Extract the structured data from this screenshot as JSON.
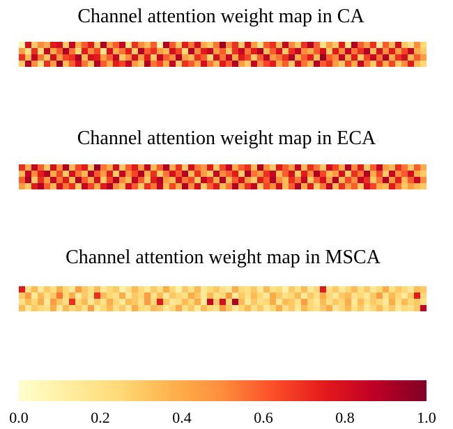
{
  "chart_data": {
    "type": "heatmap",
    "colormap": "YlOrRd",
    "colormap_colors": [
      "#ffffcc",
      "#ffeda0",
      "#fed976",
      "#feb24c",
      "#fd8d3c",
      "#fc4e2a",
      "#e31a1c",
      "#bd0026",
      "#800026"
    ],
    "range": [
      0.0,
      1.0
    ],
    "maps": [
      {
        "title": "Channel attention weight map in CA",
        "rows": 4,
        "cols": 65,
        "values": [
          [
            0.1,
            0.8,
            0.3,
            0.5,
            0.4,
            0.75,
            0.8,
            0.3,
            0.85,
            0.4,
            0.6,
            0.75,
            0.3,
            0.9,
            0.45,
            0.6,
            0.85,
            0.2,
            0.7,
            0.5,
            0.35,
            0.6,
            0.1,
            0.9,
            0.6,
            0.3,
            0.75,
            0.55,
            0.8,
            0.4,
            0.3,
            0.55,
            0.95,
            0.5,
            0.7,
            0.3,
            0.8,
            0.45,
            0.2,
            0.6,
            0.7,
            0.35,
            0.85,
            0.5,
            0.3,
            0.7,
            0.9,
            0.6,
            0.2,
            0.45,
            0.3,
            0.75,
            0.2,
            0.9,
            0.6,
            0.45,
            0.7,
            0.15,
            0.6,
            0.35,
            0.8,
            0.3,
            0.2,
            0.5,
            0.25
          ],
          [
            0.45,
            0.2,
            0.7,
            0.25,
            0.85,
            0.4,
            0.6,
            0.9,
            0.55,
            0.25,
            0.75,
            0.5,
            0.65,
            0.2,
            0.8,
            0.4,
            0.55,
            0.75,
            0.3,
            0.9,
            0.6,
            0.7,
            0.45,
            0.35,
            0.8,
            0.65,
            0.25,
            0.9,
            0.5,
            0.75,
            0.85,
            0.45,
            0.6,
            0.3,
            0.7,
            0.85,
            0.55,
            0.75,
            0.9,
            0.35,
            0.6,
            0.8,
            0.3,
            0.7,
            0.85,
            0.5,
            0.4,
            0.6,
            0.8,
            0.3,
            0.75,
            0.5,
            0.85,
            0.55,
            0.7,
            0.9,
            0.35,
            0.8,
            0.5,
            0.75,
            0.45,
            0.65,
            0.85,
            0.4,
            0.3
          ],
          [
            0.7,
            0.35,
            0.85,
            0.55,
            0.3,
            0.8,
            0.45,
            0.65,
            0.7,
            0.9,
            0.35,
            0.8,
            0.75,
            0.45,
            0.6,
            0.85,
            0.3,
            0.5,
            0.8,
            0.45,
            0.75,
            0.3,
            0.85,
            0.6,
            0.5,
            0.9,
            0.45,
            0.35,
            0.7,
            0.6,
            0.25,
            0.8,
            0.55,
            0.85,
            0.4,
            0.75,
            0.65,
            0.3,
            0.6,
            0.85,
            0.45,
            0.55,
            0.7,
            0.9,
            0.4,
            0.6,
            0.75,
            0.35,
            0.95,
            0.6,
            0.5,
            0.85,
            0.4,
            0.75,
            0.3,
            0.65,
            0.85,
            0.55,
            0.9,
            0.4,
            0.7,
            0.8,
            0.35,
            0.6,
            0.45
          ],
          [
            0.3,
            0.9,
            0.5,
            0.2,
            0.7,
            0.45,
            0.95,
            0.35,
            0.6,
            0.8,
            0.55,
            0.3,
            0.9,
            0.6,
            0.4,
            0.75,
            0.65,
            0.85,
            0.45,
            0.3,
            0.9,
            0.55,
            0.65,
            0.4,
            0.85,
            0.3,
            0.7,
            0.6,
            0.4,
            0.8,
            0.55,
            0.35,
            0.75,
            0.6,
            0.9,
            0.45,
            0.3,
            0.85,
            0.5,
            0.65,
            0.75,
            0.4,
            0.6,
            0.3,
            0.8,
            0.55,
            0.35,
            0.9,
            0.6,
            0.7,
            0.45,
            0.3,
            0.65,
            0.4,
            0.85,
            0.55,
            0.3,
            0.7,
            0.4,
            0.65,
            0.3,
            0.5,
            0.75,
            0.35,
            0.25
          ]
        ]
      },
      {
        "title": "Channel attention weight map in ECA",
        "rows": 4,
        "cols": 65,
        "values": [
          [
            0.7,
            0.4,
            0.85,
            0.6,
            0.3,
            0.8,
            0.5,
            0.9,
            0.35,
            0.65,
            0.75,
            0.3,
            0.95,
            0.55,
            0.4,
            0.8,
            0.3,
            0.6,
            0.75,
            0.45,
            0.85,
            0.35,
            0.6,
            0.9,
            0.4,
            0.7,
            0.3,
            0.8,
            0.55,
            0.45,
            0.75,
            0.3,
            0.65,
            0.85,
            0.4,
            0.6,
            0.7,
            0.35,
            0.9,
            0.5,
            0.3,
            0.75,
            0.6,
            0.45,
            0.85,
            0.35,
            0.7,
            0.55,
            0.3,
            0.8,
            0.65,
            0.4,
            0.9,
            0.5,
            0.75,
            0.3,
            0.6,
            0.85,
            0.45,
            0.35,
            0.7,
            0.55,
            0.3,
            0.6,
            0.4
          ],
          [
            0.35,
            0.85,
            0.5,
            0.75,
            0.9,
            0.4,
            0.65,
            0.3,
            0.8,
            0.55,
            0.35,
            0.9,
            0.6,
            0.45,
            0.75,
            0.3,
            0.85,
            0.5,
            0.65,
            0.9,
            0.4,
            0.7,
            0.3,
            0.55,
            0.8,
            0.6,
            0.9,
            0.35,
            0.7,
            0.45,
            0.3,
            0.85,
            0.5,
            0.6,
            0.75,
            0.3,
            0.9,
            0.55,
            0.45,
            0.7,
            0.85,
            0.35,
            0.6,
            0.8,
            0.3,
            0.75,
            0.5,
            0.9,
            0.65,
            0.35,
            0.45,
            0.8,
            0.3,
            0.7,
            0.55,
            0.9,
            0.4,
            0.65,
            0.3,
            0.85,
            0.5,
            0.6,
            0.8,
            0.4,
            0.3
          ],
          [
            0.6,
            0.9,
            0.3,
            0.7,
            0.45,
            0.85,
            0.55,
            0.75,
            0.35,
            0.9,
            0.6,
            0.4,
            0.8,
            0.3,
            0.65,
            0.9,
            0.5,
            0.35,
            0.85,
            0.6,
            0.3,
            0.75,
            0.9,
            0.45,
            0.35,
            0.8,
            0.55,
            0.65,
            0.3,
            0.85,
            0.7,
            0.4,
            0.9,
            0.35,
            0.6,
            0.8,
            0.45,
            0.3,
            0.75,
            0.6,
            0.9,
            0.5,
            0.35,
            0.7,
            0.55,
            0.85,
            0.3,
            0.6,
            0.8,
            0.45,
            0.9,
            0.35,
            0.65,
            0.5,
            0.85,
            0.7,
            0.3,
            0.55,
            0.9,
            0.45,
            0.75,
            0.35,
            0.6,
            0.85,
            0.5
          ],
          [
            0.45,
            0.3,
            0.75,
            0.9,
            0.6,
            0.35,
            0.8,
            0.55,
            0.7,
            0.3,
            0.85,
            0.65,
            0.4,
            0.75,
            0.9,
            0.5,
            0.35,
            0.8,
            0.6,
            0.3,
            0.7,
            0.55,
            0.85,
            0.35,
            0.65,
            0.4,
            0.9,
            0.5,
            0.8,
            0.3,
            0.6,
            0.75,
            0.35,
            0.55,
            0.9,
            0.45,
            0.7,
            0.85,
            0.3,
            0.65,
            0.5,
            0.8,
            0.35,
            0.6,
            0.9,
            0.4,
            0.75,
            0.3,
            0.55,
            0.85,
            0.35,
            0.7,
            0.45,
            0.6,
            0.3,
            0.8,
            0.65,
            0.4,
            0.35,
            0.75,
            0.55,
            0.3,
            0.45,
            0.35,
            0.3
          ]
        ]
      },
      {
        "title": "Channel attention weight map in MSCA",
        "rows": 4,
        "cols": 65,
        "values": [
          [
            0.75,
            0.2,
            0.35,
            0.15,
            0.3,
            0.2,
            0.4,
            0.25,
            0.15,
            0.45,
            0.3,
            0.2,
            0.35,
            0.15,
            0.25,
            0.3,
            0.1,
            0.2,
            0.35,
            0.25,
            0.15,
            0.3,
            0.2,
            0.4,
            0.25,
            0.1,
            0.3,
            0.2,
            0.35,
            0.15,
            0.25,
            0.3,
            0.2,
            0.15,
            0.4,
            0.25,
            0.2,
            0.3,
            0.15,
            0.35,
            0.2,
            0.25,
            0.1,
            0.3,
            0.2,
            0.35,
            0.15,
            0.25,
            0.75,
            0.2,
            0.3,
            0.15,
            0.25,
            0.35,
            0.2,
            0.3,
            0.15,
            0.25,
            0.4,
            0.2,
            0.3,
            0.25,
            0.15,
            0.35,
            0.3
          ],
          [
            0.3,
            0.45,
            0.15,
            0.35,
            0.2,
            0.3,
            0.55,
            0.25,
            0.4,
            0.15,
            0.3,
            0.2,
            0.7,
            0.35,
            0.25,
            0.2,
            0.4,
            0.15,
            0.3,
            0.25,
            0.45,
            0.2,
            0.35,
            0.15,
            0.3,
            0.25,
            0.2,
            0.4,
            0.3,
            0.15,
            0.35,
            0.2,
            0.25,
            0.45,
            0.15,
            0.3,
            0.2,
            0.35,
            0.25,
            0.15,
            0.4,
            0.3,
            0.2,
            0.25,
            0.35,
            0.15,
            0.3,
            0.2,
            0.4,
            0.25,
            0.15,
            0.3,
            0.35,
            0.2,
            0.25,
            0.15,
            0.3,
            0.45,
            0.2,
            0.35,
            0.25,
            0.15,
            0.3,
            0.75,
            0.25
          ],
          [
            0.2,
            0.35,
            0.25,
            0.4,
            0.15,
            0.45,
            0.3,
            0.2,
            0.7,
            0.25,
            0.35,
            0.15,
            0.3,
            0.2,
            0.4,
            0.25,
            0.15,
            0.35,
            0.3,
            0.2,
            0.45,
            0.25,
            0.75,
            0.3,
            0.15,
            0.2,
            0.35,
            0.25,
            0.4,
            0.15,
            0.85,
            0.3,
            0.8,
            0.25,
            0.9,
            0.35,
            0.15,
            0.3,
            0.2,
            0.25,
            0.4,
            0.15,
            0.35,
            0.3,
            0.2,
            0.45,
            0.25,
            0.15,
            0.35,
            0.2,
            0.3,
            0.25,
            0.4,
            0.15,
            0.35,
            0.2,
            0.3,
            0.25,
            0.15,
            0.4,
            0.2,
            0.35,
            0.25,
            0.3,
            0.2
          ],
          [
            0.35,
            0.15,
            0.3,
            0.25,
            0.2,
            0.4,
            0.15,
            0.35,
            0.25,
            0.3,
            0.2,
            0.45,
            0.15,
            0.25,
            0.35,
            0.2,
            0.3,
            0.15,
            0.4,
            0.25,
            0.2,
            0.35,
            0.3,
            0.15,
            0.25,
            0.4,
            0.2,
            0.3,
            0.15,
            0.35,
            0.25,
            0.2,
            0.45,
            0.3,
            0.15,
            0.25,
            0.35,
            0.2,
            0.3,
            0.15,
            0.25,
            0.4,
            0.2,
            0.3,
            0.15,
            0.35,
            0.25,
            0.2,
            0.3,
            0.4,
            0.15,
            0.25,
            0.35,
            0.2,
            0.3,
            0.15,
            0.25,
            0.35,
            0.2,
            0.3,
            0.15,
            0.25,
            0.2,
            0.3,
            0.85
          ]
        ]
      }
    ],
    "colorbar": {
      "ticks": [
        "0.0",
        "0.2",
        "0.4",
        "0.6",
        "0.8",
        "1.0"
      ],
      "tick_values": [
        0.0,
        0.2,
        0.4,
        0.6,
        0.8,
        1.0
      ]
    }
  }
}
